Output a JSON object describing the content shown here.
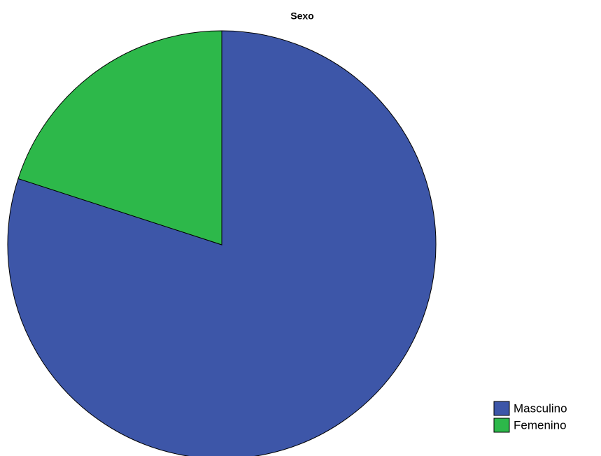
{
  "chart_data": {
    "type": "pie",
    "title": "Sexo",
    "categories": [
      "Masculino",
      "Femenino"
    ],
    "values": [
      80,
      20
    ],
    "colors": [
      "#3d56a8",
      "#2db84a"
    ],
    "legend": "bottom-right"
  }
}
